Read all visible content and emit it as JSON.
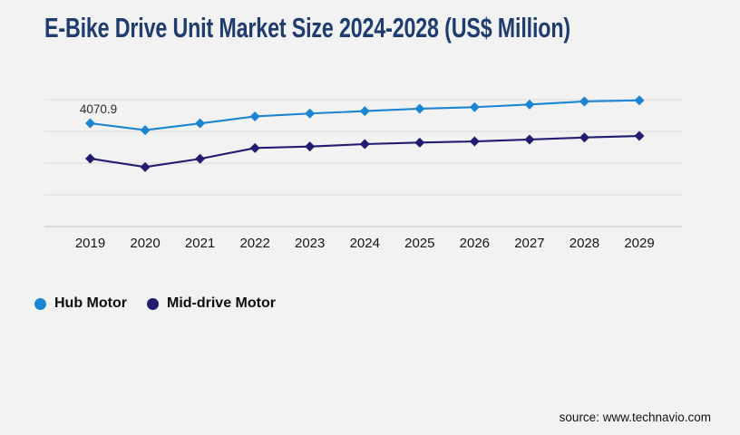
{
  "page": {
    "background": "#f2f2f3"
  },
  "chart_data": {
    "type": "line",
    "title": "E-Bike Drive Unit Market Size 2024-2028 (US$ Million)",
    "title_color": "#1f3c6e",
    "categories": [
      "2019",
      "2020",
      "2021",
      "2022",
      "2023",
      "2024",
      "2025",
      "2026",
      "2027",
      "2028",
      "2029"
    ],
    "series": [
      {
        "name": "Hub Motor",
        "color": "#1c85d2",
        "marker": "diamond",
        "values": [
          4070.9,
          3800,
          4065,
          4340,
          4455,
          4550,
          4645,
          4705,
          4810,
          4930,
          4975
        ]
      },
      {
        "name": "Mid-drive Motor",
        "color": "#211c6f",
        "marker": "diamond",
        "values": [
          2680,
          2345,
          2670,
          3095,
          3155,
          3250,
          3310,
          3355,
          3430,
          3510,
          3570
        ]
      }
    ],
    "annotations": [
      {
        "series": "Hub Motor",
        "category": "2019",
        "label": "4070.9"
      }
    ],
    "xlabel": "",
    "ylabel": "",
    "ylim": [
      0,
      5000
    ],
    "y_gridline_step": 1250,
    "y_tick_labels_visible": false,
    "grid": "horizontal",
    "legend_position": "bottom-left",
    "note": "values other than the labeled 4070.9 are estimated from gridlines"
  },
  "footer": {
    "source": "source: www.technavio.com"
  },
  "colors": {
    "gridline": "#d9d9d9",
    "axis_line": "#c2c2c2",
    "tick_label": "#161616",
    "data_label": "#2d2d2d"
  }
}
